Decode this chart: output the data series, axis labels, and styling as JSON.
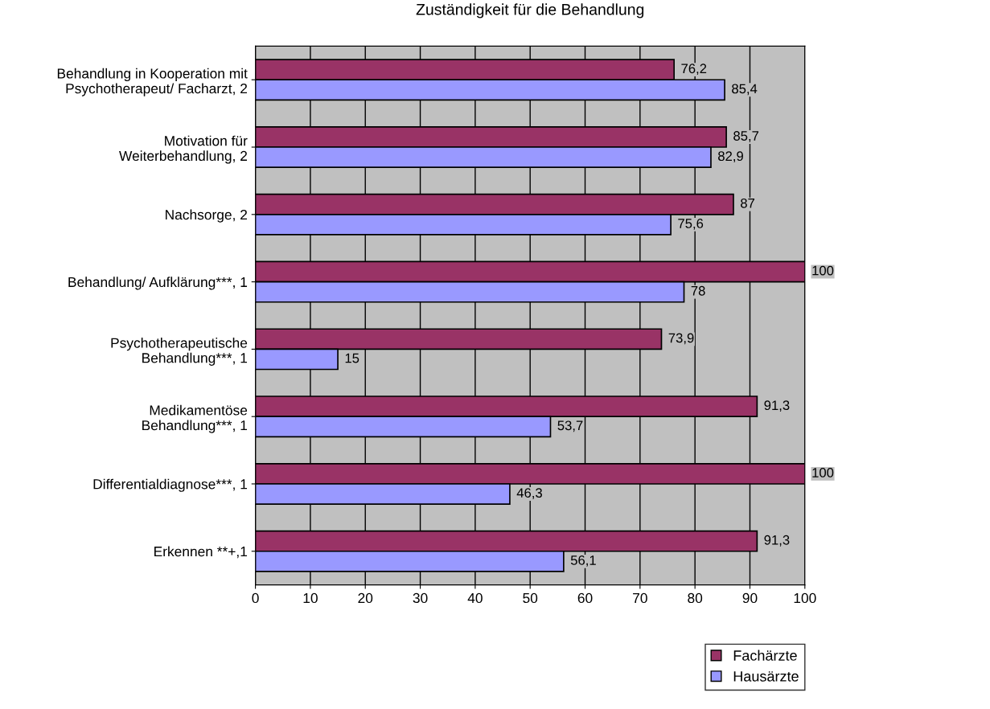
{
  "chart_data": {
    "type": "bar",
    "orientation": "horizontal",
    "title": "Zuständigkeit für die Behandlung",
    "categories": [
      "Behandlung in Kooperation mit\nPsychotherapeut/ Facharzt, 2",
      "Motivation für\nWeiterbehandlung, 2",
      "Nachsorge, 2",
      "Behandlung/ Aufklärung***, 1",
      "Psychotherapeutische\nBehandlung***, 1",
      "Medikamentöse\nBehandlung***, 1",
      "Differentialdiagnose***, 1",
      "Erkennen **+,1"
    ],
    "series": [
      {
        "name": "Fachärzte",
        "color": "#993366",
        "values": [
          76.2,
          85.7,
          87,
          100,
          73.9,
          91.3,
          100,
          91.3
        ],
        "value_labels": [
          "76,2",
          "85,7",
          "87",
          "100",
          "73,9",
          "91,3",
          "100",
          "91,3"
        ]
      },
      {
        "name": "Hausärzte",
        "color": "#9999ff",
        "values": [
          85.4,
          82.9,
          75.6,
          78,
          15,
          53.7,
          46.3,
          56.1
        ],
        "value_labels": [
          "85,4",
          "82,9",
          "75,6",
          "78",
          "15",
          "53,7",
          "46,3",
          "56,1"
        ]
      }
    ],
    "xlim": [
      0,
      100
    ],
    "xticks": [
      0,
      10,
      20,
      30,
      40,
      50,
      60,
      70,
      80,
      90,
      100
    ],
    "grid": "x",
    "legend": "bottom right"
  }
}
